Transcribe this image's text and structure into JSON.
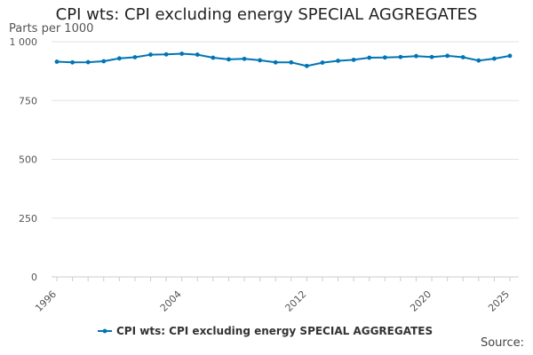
{
  "chart_data": {
    "type": "line",
    "title": "CPI wts: CPI excluding energy SPECIAL AGGREGATES",
    "ylabel": "Parts per 1000",
    "xlabel": "",
    "ylim": [
      0,
      1000
    ],
    "yticks": [
      0,
      250,
      500,
      750,
      1000
    ],
    "ytick_labels": [
      "0",
      "250",
      "500",
      "750",
      "1 000"
    ],
    "xticks": [
      1996,
      2004,
      2012,
      2020,
      2025
    ],
    "xlim": [
      1996,
      2025
    ],
    "grid": "horizontal",
    "legend_position": "bottom",
    "series": [
      {
        "name": "CPI wts: CPI excluding energy SPECIAL AGGREGATES",
        "color": "#0075b4",
        "x": [
          1996,
          1997,
          1998,
          1999,
          2000,
          2001,
          2002,
          2003,
          2004,
          2005,
          2006,
          2007,
          2008,
          2009,
          2010,
          2011,
          2012,
          2013,
          2014,
          2015,
          2016,
          2017,
          2018,
          2019,
          2020,
          2021,
          2022,
          2023,
          2024,
          2025
        ],
        "values": [
          915,
          912,
          913,
          917,
          929,
          934,
          945,
          946,
          949,
          945,
          932,
          925,
          927,
          921,
          912,
          912,
          897,
          911,
          919,
          923,
          932,
          933,
          935,
          939,
          935,
          940,
          934,
          920,
          928,
          940
        ]
      }
    ]
  },
  "footer": {
    "source_label": "Source:"
  }
}
